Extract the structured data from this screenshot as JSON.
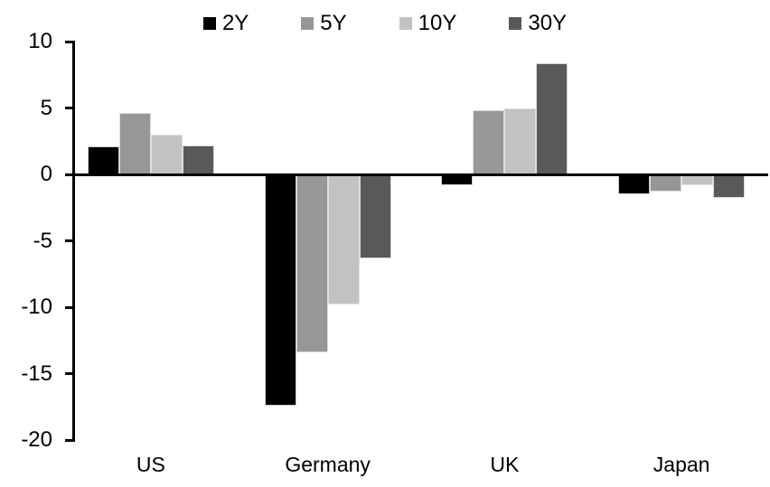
{
  "chart_data": {
    "type": "bar",
    "title": "",
    "xlabel": "",
    "ylabel": "",
    "categories": [
      "US",
      "Germany",
      "UK",
      "Japan"
    ],
    "series": [
      {
        "name": "2Y",
        "color": "#000000",
        "values": [
          2.1,
          -17.4,
          -0.8,
          -1.5
        ]
      },
      {
        "name": "5Y",
        "color": "#979797",
        "values": [
          4.6,
          -13.4,
          4.8,
          -1.3
        ]
      },
      {
        "name": "10Y",
        "color": "#c2c2c2",
        "values": [
          3.0,
          -9.8,
          5.0,
          -0.8
        ]
      },
      {
        "name": "30Y",
        "color": "#595959",
        "values": [
          2.2,
          -6.3,
          8.4,
          -1.8
        ]
      }
    ],
    "ylim": [
      -20,
      10
    ],
    "yticks": [
      10,
      5,
      0,
      -5,
      -10,
      -15,
      -20
    ],
    "grid": false,
    "legend_position": "top",
    "axis_color": "#000000",
    "background_color": "#ffffff"
  }
}
